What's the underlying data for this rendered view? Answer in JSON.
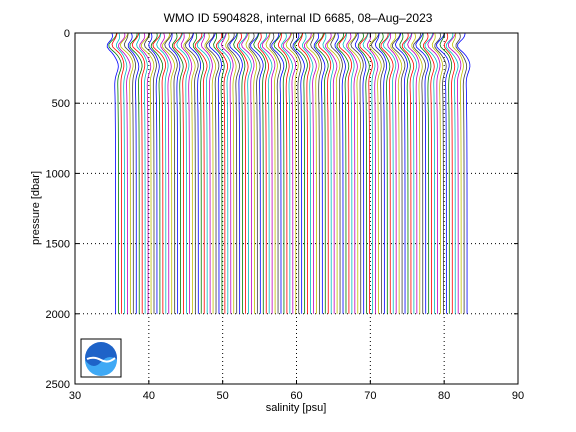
{
  "chart_data": {
    "type": "line",
    "title": "WMO ID 5904828, internal ID 6685, 08–Aug–2023",
    "xlabel": "salinity [psu]",
    "ylabel": "pressure [dbar]",
    "xlim": [
      30,
      90
    ],
    "ylim": [
      0,
      2500
    ],
    "y_reversed": true,
    "grid": true,
    "grid_style": "dotted",
    "xticks": [
      "30",
      "40",
      "50",
      "60",
      "70",
      "80",
      "90"
    ],
    "yticks": [
      "0",
      "500",
      "1000",
      "1500",
      "2000"
    ],
    "yticks_bottom": "2500",
    "profile_offset_psu": 0.4,
    "profile_count": 120,
    "first_profile_surface_salinity": 35.0,
    "deep_salinity_offset": 0.5,
    "max_pressure": 2000,
    "series_colors": [
      "#0000ff",
      "#008000",
      "#ff0000",
      "#00bfbf",
      "#bf00bf",
      "#bfbf00",
      "#3f3f3f"
    ],
    "logo": "noaa-logo"
  }
}
